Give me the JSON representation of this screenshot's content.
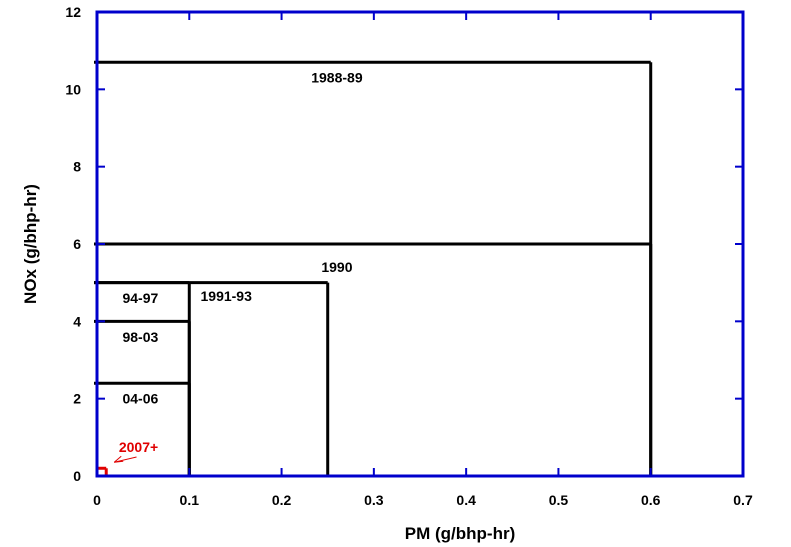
{
  "chart_data": {
    "type": "line",
    "xlabel": "PM (g/bhp-hr)",
    "ylabel": "NOx (g/bhp-hr)",
    "xlim": [
      0,
      0.7
    ],
    "ylim": [
      0,
      12
    ],
    "xticks": [
      "0",
      "0.1",
      "0.2",
      "0.3",
      "0.4",
      "0.5",
      "0.6",
      "0.7"
    ],
    "yticks": [
      "0",
      "2",
      "4",
      "6",
      "8",
      "10",
      "12"
    ],
    "grid": false,
    "frame_color": "#0000cc",
    "line_color": "#000000",
    "highlight_color": "#e00000",
    "series": [
      {
        "name": "1988-89",
        "pm": 0.6,
        "nox": 10.7,
        "label_at": [
          0.26,
          10.3
        ]
      },
      {
        "name": "1990",
        "pm": 0.6,
        "nox": 6.0,
        "label_at": [
          0.26,
          5.4
        ]
      },
      {
        "name": "1991-93",
        "pm": 0.25,
        "nox": 5.0,
        "label_at": [
          0.14,
          4.65
        ]
      },
      {
        "name": "94-97",
        "pm": 0.1,
        "nox": 5.0,
        "label_at": [
          0.047,
          4.6
        ]
      },
      {
        "name": "98-03",
        "pm": 0.1,
        "nox": 4.0,
        "label_at": [
          0.047,
          3.6
        ]
      },
      {
        "name": "04-06",
        "pm": 0.1,
        "nox": 2.4,
        "label_at": [
          0.047,
          2.0
        ]
      },
      {
        "name": "2007+",
        "pm": 0.01,
        "nox": 0.2,
        "label_at": [
          0.045,
          0.75
        ],
        "highlight": true
      }
    ]
  }
}
